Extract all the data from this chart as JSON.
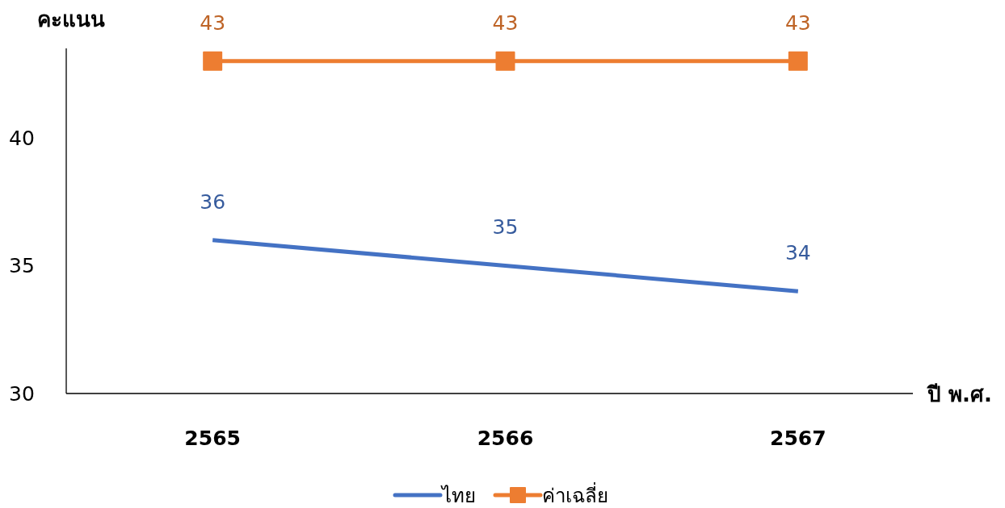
{
  "chart_data": {
    "type": "line",
    "xlabel": "ปี พ.ศ.",
    "ylabel": "คะแนน",
    "categories": [
      "2565",
      "2566",
      "2567"
    ],
    "series": [
      {
        "name": "ไทย",
        "color": "#4472c4",
        "values": [
          36,
          35,
          34
        ],
        "marker": "none"
      },
      {
        "name": "ค่าเฉลี่ย",
        "color": "#ed7d31",
        "values": [
          43,
          43,
          43
        ],
        "marker": "square"
      }
    ],
    "ylim": [
      30,
      43.5
    ],
    "yticks": [
      30,
      35,
      40
    ],
    "data_labels": true,
    "legend": "bottom"
  }
}
